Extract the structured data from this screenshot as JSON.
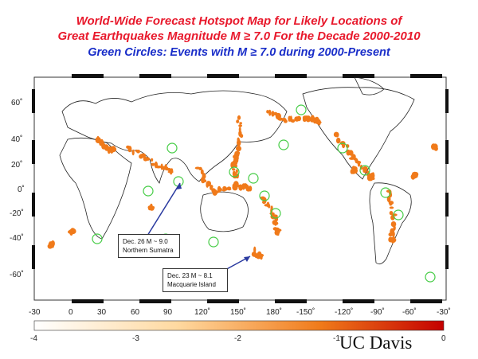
{
  "title": {
    "line1": "World-Wide Forecast Hotspot Map for Likely Locations of",
    "line2": "Great Earthquakes Magnitude M ≥ 7.0 For the Decade 2000-2010",
    "line3": "Green Circles:  Events with M ≥ 7.0 during 2000-Present"
  },
  "axes": {
    "lat_labels": [
      "60˚",
      "40˚",
      "20˚",
      "0˚",
      "-20˚",
      "-40˚",
      "-60˚"
    ],
    "lon_labels": [
      "-30",
      "0",
      "30",
      "60",
      "90",
      "120˚",
      "150˚",
      "180˚",
      "-150˚",
      "-120˚",
      "-90˚",
      "-60˚",
      "-30˚"
    ]
  },
  "callouts": [
    {
      "line1": "Dec. 26 M ~ 9.0",
      "line2": "Northern Sumatra"
    },
    {
      "line1": "Dec. 23 M ~ 8.1",
      "line2": "Macquarie Island"
    }
  ],
  "colorbar": {
    "ticks": [
      "-4",
      "-3",
      "-2",
      "-1",
      "0"
    ],
    "low_color": "#ffffff",
    "high_color": "#c40000"
  },
  "credit": "UC Davis",
  "colors": {
    "hotspot": "#f07a1a",
    "circle": "#44cc44",
    "title_red": "#e8192c",
    "title_blue": "#1a2ec9"
  }
}
